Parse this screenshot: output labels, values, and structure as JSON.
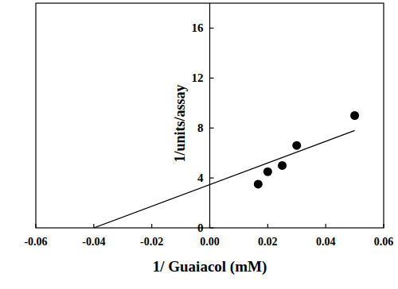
{
  "chart_data": {
    "type": "scatter",
    "xlabel": "1/ Guaiacol (mM)",
    "ylabel": "1/units/assay",
    "xlim": [
      -0.06,
      0.06
    ],
    "ylim": [
      0,
      18
    ],
    "xticks": [
      -0.06,
      -0.04,
      -0.02,
      {
        "value": 0,
        "label": "0.00"
      },
      0.02,
      0.04,
      0.06
    ],
    "yticks": [
      0,
      4,
      8,
      12,
      16
    ],
    "grid": false,
    "series": [
      {
        "type": "scatter",
        "marker": "circle",
        "color": "#000000",
        "x": [
          0.0167,
          0.02,
          0.025,
          0.03,
          0.05
        ],
        "values": [
          3.5,
          4.5,
          5.0,
          6.6,
          9.0
        ]
      },
      {
        "type": "line",
        "line_style": "solid",
        "color": "#000000",
        "x": [
          -0.04,
          0.05
        ],
        "values": [
          0,
          7.8
        ]
      }
    ]
  }
}
